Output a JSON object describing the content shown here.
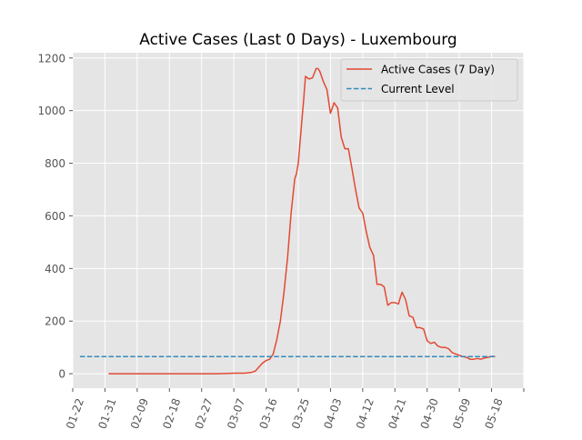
{
  "chart_data": {
    "type": "line",
    "title": "Active Cases (Last 0 Days) - Luxembourg",
    "xlabel": "",
    "ylabel": "",
    "ylim": [
      -55,
      1220
    ],
    "yticks": [
      0,
      200,
      400,
      600,
      800,
      1000,
      1200
    ],
    "x_start_date": "2020-01-22",
    "xlim_days": [
      0,
      126
    ],
    "xticks": [
      {
        "day": 0,
        "label": "01-22"
      },
      {
        "day": 9,
        "label": "01-31"
      },
      {
        "day": 18,
        "label": "02-09"
      },
      {
        "day": 27,
        "label": "02-18"
      },
      {
        "day": 36,
        "label": "02-27"
      },
      {
        "day": 45,
        "label": "03-07"
      },
      {
        "day": 54,
        "label": "03-16"
      },
      {
        "day": 63,
        "label": "03-25"
      },
      {
        "day": 72,
        "label": "04-03"
      },
      {
        "day": 81,
        "label": "04-12"
      },
      {
        "day": 90,
        "label": "04-21"
      },
      {
        "day": 99,
        "label": "04-30"
      },
      {
        "day": 108,
        "label": "05-09"
      },
      {
        "day": 117,
        "label": "05-18"
      },
      {
        "day": 126,
        "label": ""
      }
    ],
    "grid": true,
    "legend_position": "top-right",
    "series": [
      {
        "name": "Active Cases (7 Day)",
        "color": "#E24A33",
        "style": "solid",
        "days": [
          10,
          20,
          30,
          40,
          45,
          48,
          50,
          51,
          52,
          53,
          54,
          55,
          56,
          57,
          58,
          59,
          60,
          61,
          62,
          62.5,
          63,
          64,
          64.5,
          65,
          66,
          67,
          68,
          68.5,
          69,
          70,
          71,
          72,
          73,
          74,
          75,
          76,
          77,
          78,
          79,
          80,
          81,
          82,
          83,
          84,
          85,
          86,
          86.5,
          87,
          88,
          89,
          90,
          91,
          91.5,
          92,
          93,
          94,
          95,
          96,
          97,
          98,
          99,
          100,
          101,
          102,
          103,
          104,
          105,
          106,
          107,
          108,
          109,
          110,
          111,
          112,
          113,
          114,
          115,
          116,
          117,
          118
        ],
        "values": [
          0,
          0,
          0,
          0,
          2,
          2,
          5,
          10,
          25,
          40,
          50,
          55,
          75,
          130,
          200,
          310,
          440,
          610,
          740,
          760,
          800,
          960,
          1040,
          1130,
          1120,
          1125,
          1160,
          1160,
          1150,
          1110,
          1080,
          990,
          1030,
          1010,
          900,
          855,
          855,
          780,
          700,
          630,
          610,
          540,
          480,
          450,
          340,
          340,
          335,
          330,
          260,
          270,
          270,
          265,
          290,
          310,
          280,
          220,
          215,
          175,
          175,
          170,
          125,
          115,
          120,
          105,
          100,
          100,
          95,
          80,
          75,
          70,
          65,
          62,
          55,
          55,
          58,
          55,
          60,
          62,
          66,
          65
        ]
      },
      {
        "name": "Current Level",
        "color": "#348ABD",
        "style": "dashed",
        "days": [
          2,
          118
        ],
        "values": [
          65,
          65
        ]
      }
    ]
  }
}
